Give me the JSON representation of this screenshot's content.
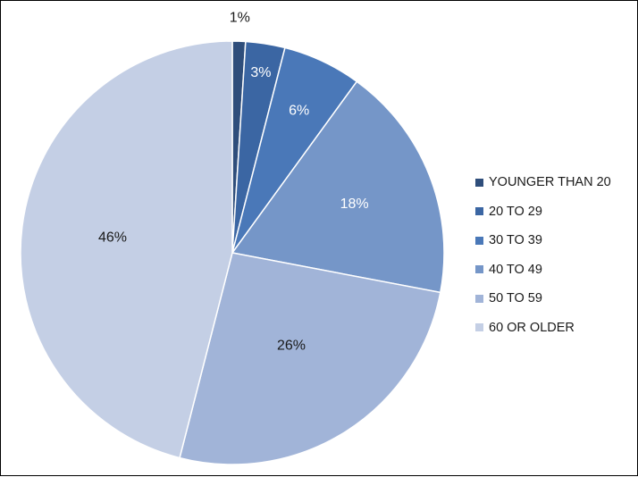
{
  "chart_data": {
    "type": "pie",
    "title": "",
    "categories": [
      "YOUNGER THAN 20",
      "20 TO 29",
      "30 TO 39",
      "40 TO 49",
      "50 TO 59",
      "60 OR OLDER"
    ],
    "values": [
      1,
      3,
      6,
      18,
      26,
      46
    ],
    "labels": [
      "1%",
      "3%",
      "6%",
      "18%",
      "26%",
      "46%"
    ],
    "colors": [
      "#2f4e7b",
      "#3b66a3",
      "#4a78b8",
      "#7596c8",
      "#a1b4d8",
      "#c4cfe5"
    ],
    "label_colors": [
      "#1a1a1a",
      "#ffffff",
      "#ffffff",
      "#ffffff",
      "#1a1a1a",
      "#1a1a1a"
    ],
    "start_angle": "12 o'clock",
    "direction": "clockwise",
    "legend_position": "right"
  }
}
